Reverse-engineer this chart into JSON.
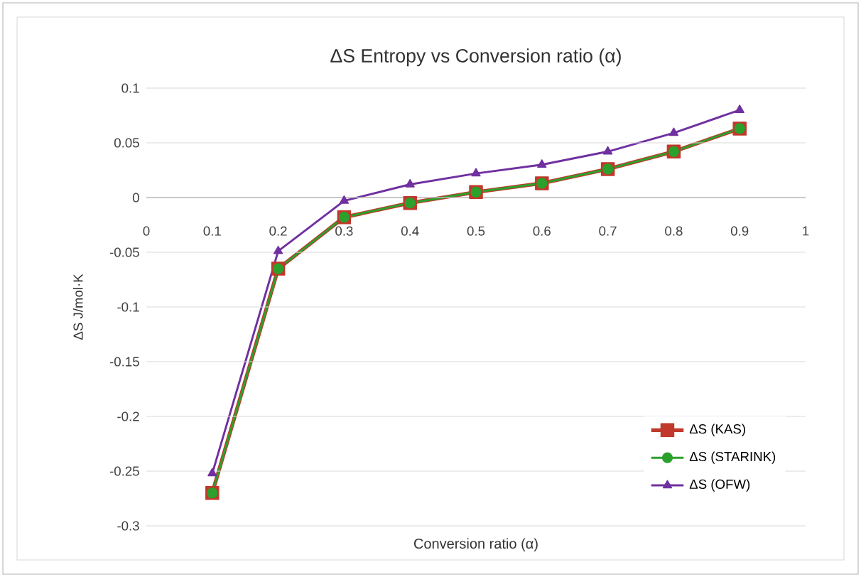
{
  "chart_data": {
    "type": "line",
    "title": "ΔS Entropy vs Conversion ratio (α)",
    "xlabel": "Conversion ratio (α)",
    "ylabel": "ΔS J/mol·K",
    "x": [
      0.1,
      0.2,
      0.3,
      0.4,
      0.5,
      0.6,
      0.7,
      0.8,
      0.9
    ],
    "series": [
      {
        "name": "ΔS (KAS)",
        "color": "#c0392b",
        "marker": "square",
        "values": [
          -0.27,
          -0.065,
          -0.018,
          -0.005,
          0.005,
          0.013,
          0.026,
          0.042,
          0.063
        ]
      },
      {
        "name": "ΔS (STARINK)",
        "color": "#2ca02c",
        "marker": "circle",
        "values": [
          -0.27,
          -0.065,
          -0.018,
          -0.005,
          0.005,
          0.013,
          0.026,
          0.042,
          0.063
        ]
      },
      {
        "name": "ΔS (OFW)",
        "color": "#7030a0",
        "marker": "triangle",
        "values": [
          -0.252,
          -0.049,
          -0.003,
          0.012,
          0.022,
          0.03,
          0.042,
          0.059,
          0.08
        ]
      }
    ],
    "xlim": [
      0,
      1
    ],
    "xticks": [
      0,
      0.1,
      0.2,
      0.3,
      0.4,
      0.5,
      0.6,
      0.7,
      0.8,
      0.9,
      1
    ],
    "ylim": [
      -0.3,
      0.1
    ],
    "yticks": [
      -0.3,
      -0.25,
      -0.2,
      -0.15,
      -0.1,
      -0.05,
      0,
      0.05,
      0.1
    ],
    "grid": "y",
    "legend": "bottom right"
  }
}
